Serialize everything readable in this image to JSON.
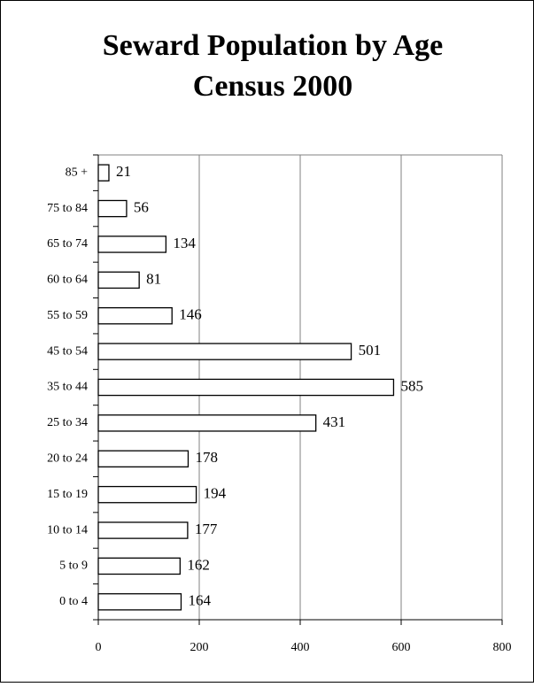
{
  "chart_data": {
    "type": "bar",
    "orientation": "horizontal",
    "title": "Seward Population by Age",
    "subtitle": "Census 2000",
    "categories": [
      "85 +",
      "75 to 84",
      "65 to 74",
      "60 to 64",
      "55 to 59",
      "45 to 54",
      "35 to 44",
      "25 to 34",
      "20 to 24",
      "15 to 19",
      "10 to 14",
      "5 to 9",
      "0 to 4"
    ],
    "values": [
      21,
      56,
      134,
      81,
      146,
      501,
      585,
      431,
      178,
      194,
      177,
      162,
      164
    ],
    "color": "#ffffff",
    "xlim": [
      0,
      800
    ],
    "xticks": [
      0,
      200,
      400,
      600,
      800
    ],
    "grid": true
  }
}
